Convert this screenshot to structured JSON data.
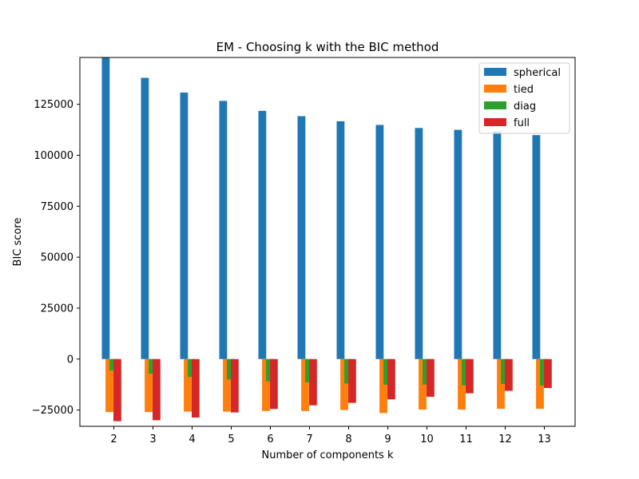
{
  "chart_data": {
    "type": "bar",
    "title": "EM - Choosing k with the BIC method",
    "xlabel": "Number of components k",
    "ylabel": "BIC score",
    "categories": [
      "2",
      "3",
      "4",
      "5",
      "6",
      "7",
      "8",
      "9",
      "10",
      "11",
      "12",
      "13"
    ],
    "ylim": [
      -33000,
      148000
    ],
    "yticks": [
      -25000,
      0,
      25000,
      50000,
      75000,
      100000,
      125000
    ],
    "ytick_labels": [
      "−25000",
      "0",
      "25000",
      "50000",
      "75000",
      "100000",
      "125000"
    ],
    "legend_position": "top-right",
    "grid": false,
    "series": [
      {
        "name": "spherical",
        "color": "#1f77b4",
        "values": [
          148000,
          138000,
          130800,
          126700,
          121800,
          119200,
          116700,
          114900,
          113400,
          112500,
          111800,
          109900
        ]
      },
      {
        "name": "tied",
        "color": "#ff7f0e",
        "values": [
          -26000,
          -26000,
          -25800,
          -25800,
          -25500,
          -25500,
          -25000,
          -26500,
          -24800,
          -24800,
          -24400,
          -24400
        ]
      },
      {
        "name": "diag",
        "color": "#2ca02c",
        "values": [
          -5600,
          -7200,
          -8700,
          -10000,
          -11000,
          -11400,
          -12000,
          -12600,
          -12500,
          -12900,
          -12200,
          -13000
        ]
      },
      {
        "name": "full",
        "color": "#d62728",
        "values": [
          -30500,
          -30000,
          -28700,
          -26200,
          -24500,
          -22700,
          -21500,
          -19800,
          -18500,
          -16800,
          -15600,
          -14200
        ]
      }
    ]
  }
}
